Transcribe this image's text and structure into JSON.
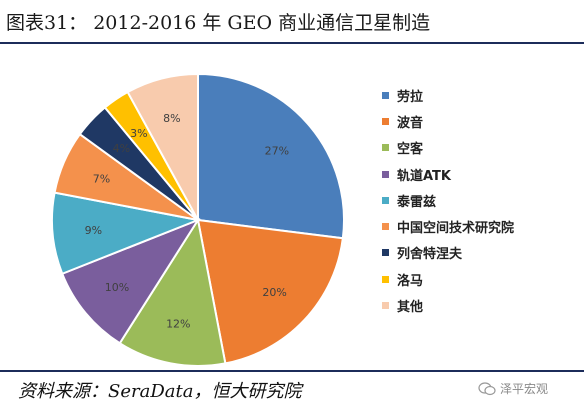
{
  "figure_title": "图表31：  2012-2016 年 GEO 商业通信卫星制造",
  "source_text": "资料来源：SeraData，恒大研究院",
  "watermark_text": "泽平宏观",
  "chart_data": {
    "type": "pie",
    "categories": [
      "劳拉",
      "波音",
      "空客",
      "轨道ATK",
      "泰雷兹",
      "中国空间技术研究院",
      "列舍特涅夫",
      "洛马",
      "其他"
    ],
    "values": [
      27,
      20,
      12,
      10,
      9,
      7,
      4,
      3,
      8
    ],
    "labels": [
      "27%",
      "20%",
      "12%",
      "10%",
      "9%",
      "7%",
      "4%",
      "3%",
      "8%"
    ],
    "colors": [
      "#4a7ebb",
      "#ed7d31",
      "#9bbb59",
      "#7a5e9d",
      "#4bacc6",
      "#f4914c",
      "#1f3864",
      "#ffc000",
      "#f8cbad"
    ],
    "legend_position": "right"
  }
}
